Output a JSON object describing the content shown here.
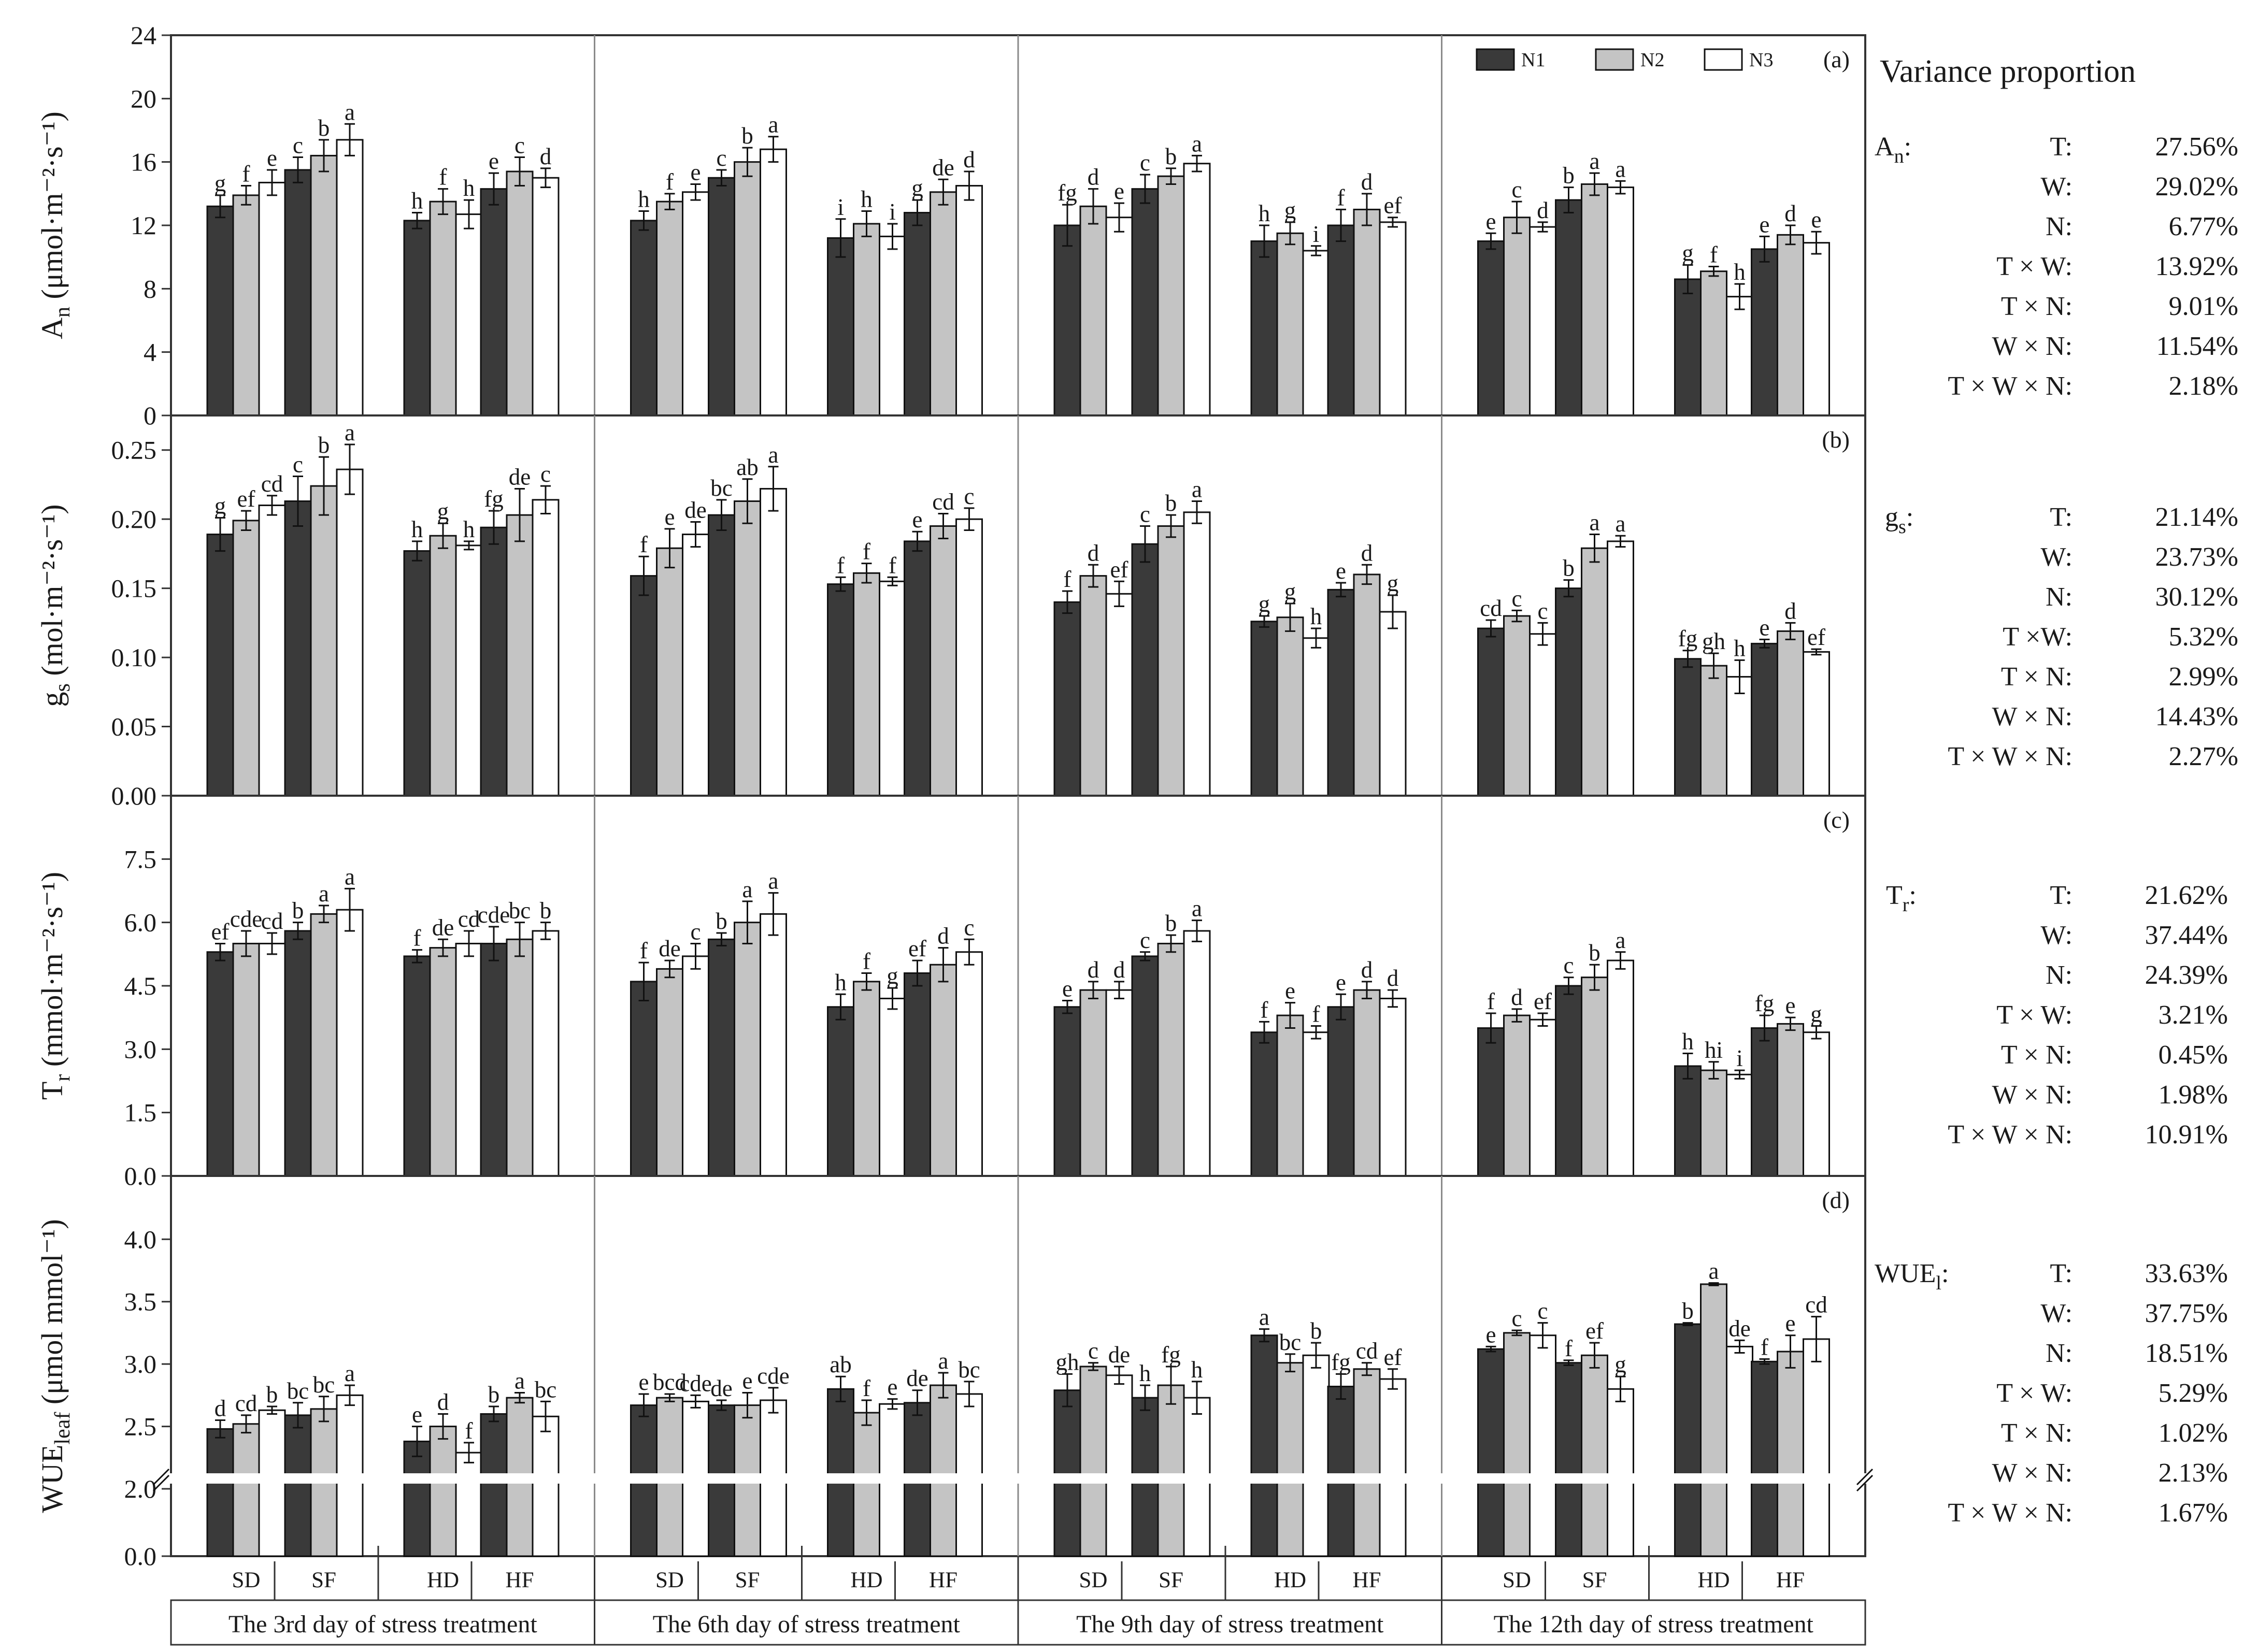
{
  "chart_data": {
    "type": "bar",
    "title": "",
    "series_names": [
      "N1",
      "N2",
      "N3"
    ],
    "colors": {
      "N1": "#3a3a3a",
      "N2": "#c4c4c4",
      "N3": "#ffffff",
      "frame": "#333333",
      "divider": "#8a8a8a"
    },
    "days": [
      "The 3rd day of stress treatment",
      "The 6th day of stress treatment",
      "The 9th day of stress treatment",
      "The 12th day of stress treatment"
    ],
    "treatments": [
      "SD",
      "SF",
      "HD",
      "HF"
    ],
    "panels": [
      {
        "tag": "(a)",
        "ylabel": "An (μmol·m⁻²·s⁻¹)",
        "ylabel_main": "A",
        "ylabel_sub": "n",
        "ylabel_rest": " (μmol·m⁻²·s⁻¹)",
        "ylim": [
          0,
          24
        ],
        "ticks": [
          "0",
          "4",
          "8",
          "12",
          "16",
          "20",
          "24"
        ],
        "tick_values": [
          0,
          4,
          8,
          12,
          16,
          20,
          24
        ],
        "values": [
          [
            13.2,
            13.9,
            14.7,
            15.5,
            16.4,
            17.4,
            12.3,
            13.5,
            12.7,
            14.3,
            15.4,
            15.0
          ],
          [
            12.3,
            13.5,
            14.1,
            15.0,
            16.0,
            16.8,
            11.2,
            12.1,
            11.3,
            12.8,
            14.1,
            14.5
          ],
          [
            12.0,
            13.2,
            12.5,
            14.3,
            15.1,
            15.9,
            11.0,
            11.5,
            10.4,
            12.0,
            13.0,
            12.2
          ],
          [
            11.0,
            12.5,
            11.9,
            13.6,
            14.6,
            14.4,
            8.6,
            9.1,
            7.5,
            10.5,
            11.4,
            10.9
          ]
        ],
        "errors": [
          [
            0.7,
            0.6,
            0.8,
            0.8,
            1.0,
            1.0,
            0.5,
            0.8,
            0.9,
            1.0,
            0.9,
            0.6
          ],
          [
            0.6,
            0.5,
            0.5,
            0.5,
            0.9,
            0.8,
            1.2,
            0.8,
            0.8,
            0.8,
            0.8,
            0.9
          ],
          [
            1.3,
            1.1,
            0.9,
            0.9,
            0.5,
            0.5,
            1.0,
            0.7,
            0.3,
            1.0,
            1.0,
            0.3
          ],
          [
            0.5,
            1.0,
            0.3,
            0.8,
            0.7,
            0.4,
            0.9,
            0.3,
            0.8,
            0.8,
            0.6,
            0.7
          ]
        ],
        "letters": [
          [
            "g",
            "f",
            "e",
            "c",
            "b",
            "a",
            "h",
            "f",
            "h",
            "e",
            "c",
            "d"
          ],
          [
            "h",
            "f",
            "e",
            "c",
            "b",
            "a",
            "i",
            "h",
            "i",
            "g",
            "de",
            "d"
          ],
          [
            "fg",
            "d",
            "e",
            "c",
            "b",
            "a",
            "h",
            "g",
            "i",
            "f",
            "d",
            "ef"
          ],
          [
            "e",
            "c",
            "d",
            "b",
            "a",
            "a",
            "g",
            "f",
            "h",
            "e",
            "d",
            "e"
          ]
        ],
        "variance_label_main": "A",
        "variance_label_sub": "n",
        "variance": [
          {
            "term": "T:",
            "value": "27.56%"
          },
          {
            "term": "W:",
            "value": "29.02%"
          },
          {
            "term": "N:",
            "value": "6.77%"
          },
          {
            "term": "T × W:",
            "value": "13.92%"
          },
          {
            "term": "T × N:",
            "value": "9.01%"
          },
          {
            "term": "W × N:",
            "value": "11.54%"
          },
          {
            "term": "T × W × N:",
            "value": "2.18%"
          }
        ]
      },
      {
        "tag": "(b)",
        "ylabel": "gs (mol·m⁻²·s⁻¹)",
        "ylabel_main": "g",
        "ylabel_sub": "s",
        "ylabel_rest": " (mol·m⁻²·s⁻¹)",
        "ylim": [
          0,
          0.275
        ],
        "ticks": [
          "0.00",
          "0.05",
          "0.10",
          "0.15",
          "0.20",
          "0.25"
        ],
        "tick_values": [
          0,
          0.05,
          0.1,
          0.15,
          0.2,
          0.25
        ],
        "values": [
          [
            0.189,
            0.199,
            0.21,
            0.213,
            0.224,
            0.236,
            0.177,
            0.188,
            0.181,
            0.194,
            0.203,
            0.214
          ],
          [
            0.159,
            0.179,
            0.189,
            0.203,
            0.213,
            0.222,
            0.153,
            0.161,
            0.155,
            0.184,
            0.195,
            0.2
          ],
          [
            0.14,
            0.159,
            0.146,
            0.182,
            0.195,
            0.205,
            0.126,
            0.129,
            0.114,
            0.149,
            0.16,
            0.133
          ],
          [
            0.121,
            0.13,
            0.117,
            0.15,
            0.179,
            0.184,
            0.099,
            0.094,
            0.086,
            0.11,
            0.119,
            0.104
          ]
        ],
        "errors": [
          [
            0.012,
            0.007,
            0.007,
            0.018,
            0.021,
            0.018,
            0.007,
            0.009,
            0.003,
            0.012,
            0.019,
            0.01
          ],
          [
            0.014,
            0.014,
            0.009,
            0.011,
            0.016,
            0.016,
            0.005,
            0.007,
            0.003,
            0.007,
            0.009,
            0.008
          ],
          [
            0.008,
            0.008,
            0.009,
            0.013,
            0.008,
            0.008,
            0.004,
            0.01,
            0.007,
            0.005,
            0.007,
            0.012
          ],
          [
            0.006,
            0.004,
            0.008,
            0.006,
            0.01,
            0.004,
            0.006,
            0.009,
            0.012,
            0.003,
            0.006,
            0.002
          ]
        ],
        "letters": [
          [
            "g",
            "ef",
            "cd",
            "c",
            "b",
            "a",
            "h",
            "g",
            "h",
            "fg",
            "de",
            "c"
          ],
          [
            "f",
            "e",
            "de",
            "bc",
            "ab",
            "a",
            "f",
            "f",
            "f",
            "e",
            "cd",
            "c"
          ],
          [
            "f",
            "d",
            "ef",
            "c",
            "b",
            "a",
            "g",
            "g",
            "h",
            "e",
            "d",
            "g"
          ],
          [
            "cd",
            "c",
            "c",
            "b",
            "a",
            "a",
            "fg",
            "gh",
            "h",
            "e",
            "d",
            "ef"
          ]
        ],
        "variance_label_main": "g",
        "variance_label_sub": "s",
        "variance": [
          {
            "term": "T:",
            "value": "21.14%"
          },
          {
            "term": "W:",
            "value": "23.73%"
          },
          {
            "term": "N:",
            "value": "30.12%"
          },
          {
            "term": "T ×W:",
            "value": "5.32%"
          },
          {
            "term": "T × N:",
            "value": "2.99%"
          },
          {
            "term": "W × N:",
            "value": "14.43%"
          },
          {
            "term": "T × W × N:",
            "value": "2.27%"
          }
        ]
      },
      {
        "tag": "(c)",
        "ylabel": "Tr (mmol·m⁻²·s⁻¹)",
        "ylabel_main": "T",
        "ylabel_sub": "r",
        "ylabel_rest": " (mmol·m⁻²·s⁻¹)",
        "ylim": [
          0,
          9
        ],
        "ticks": [
          "0.0",
          "1.5",
          "3.0",
          "4.5",
          "6.0",
          "7.5"
        ],
        "tick_values": [
          0,
          1.5,
          3.0,
          4.5,
          6.0,
          7.5
        ],
        "values": [
          [
            5.3,
            5.5,
            5.5,
            5.8,
            6.2,
            6.3,
            5.2,
            5.4,
            5.5,
            5.5,
            5.6,
            5.8
          ],
          [
            4.6,
            4.9,
            5.2,
            5.6,
            6.0,
            6.2,
            4.0,
            4.6,
            4.2,
            4.8,
            5.0,
            5.3
          ],
          [
            4.0,
            4.4,
            4.4,
            5.2,
            5.5,
            5.8,
            3.4,
            3.8,
            3.4,
            4.0,
            4.4,
            4.2
          ],
          [
            3.5,
            3.8,
            3.7,
            4.5,
            4.7,
            5.1,
            2.6,
            2.5,
            2.4,
            3.5,
            3.6,
            3.4
          ]
        ],
        "errors": [
          [
            0.2,
            0.3,
            0.25,
            0.2,
            0.2,
            0.5,
            0.15,
            0.2,
            0.3,
            0.4,
            0.4,
            0.2
          ],
          [
            0.45,
            0.2,
            0.3,
            0.15,
            0.5,
            0.5,
            0.3,
            0.2,
            0.25,
            0.3,
            0.4,
            0.3
          ],
          [
            0.15,
            0.2,
            0.2,
            0.1,
            0.2,
            0.25,
            0.25,
            0.3,
            0.15,
            0.3,
            0.2,
            0.2
          ],
          [
            0.35,
            0.15,
            0.15,
            0.2,
            0.3,
            0.2,
            0.3,
            0.2,
            0.1,
            0.3,
            0.15,
            0.15
          ]
        ],
        "letters": [
          [
            "ef",
            "cde",
            "cd",
            "b",
            "a",
            "a",
            "f",
            "de",
            "cd",
            "cde",
            "bc",
            "b"
          ],
          [
            "f",
            "de",
            "c",
            "b",
            "a",
            "a",
            "h",
            "f",
            "g",
            "ef",
            "d",
            "c"
          ],
          [
            "e",
            "d",
            "d",
            "c",
            "b",
            "a",
            "f",
            "e",
            "f",
            "e",
            "d",
            "d"
          ],
          [
            "f",
            "d",
            "ef",
            "c",
            "b",
            "a",
            "h",
            "hi",
            "i",
            "fg",
            "e",
            "g"
          ]
        ],
        "variance_label_main": "T",
        "variance_label_sub": "r",
        "variance": [
          {
            "term": "T:",
            "value": "21.62%"
          },
          {
            "term": "W:",
            "value": "37.44%"
          },
          {
            "term": "N:",
            "value": "24.39%"
          },
          {
            "term": "T × W:",
            "value": "3.21%"
          },
          {
            "term": "T × N:",
            "value": "0.45%"
          },
          {
            "term": "W × N:",
            "value": "1.98%"
          },
          {
            "term": "T × W × N:",
            "value": "10.91%"
          }
        ]
      },
      {
        "tag": "(d)",
        "ylabel": "WUEleaf (μmol mmol⁻¹)",
        "ylabel_main": "WUE",
        "ylabel_sub": "leaf",
        "ylabel_rest": " (μmol mmol⁻¹)",
        "axis_break": true,
        "ticks": [
          "0.0",
          "2.0",
          "2.5",
          "3.0",
          "3.5",
          "4.0"
        ],
        "tick_values": [
          0,
          2.0,
          2.5,
          3.0,
          3.5,
          4.0
        ],
        "values": [
          [
            2.48,
            2.52,
            2.63,
            2.59,
            2.64,
            2.75,
            2.38,
            2.5,
            2.29,
            2.6,
            2.73,
            2.58
          ],
          [
            2.67,
            2.73,
            2.7,
            2.67,
            2.67,
            2.71,
            2.8,
            2.61,
            2.68,
            2.69,
            2.83,
            2.76
          ],
          [
            2.79,
            2.98,
            2.91,
            2.73,
            2.83,
            2.73,
            3.23,
            3.01,
            3.07,
            2.82,
            2.96,
            2.88
          ],
          [
            3.12,
            3.25,
            3.23,
            3.01,
            3.07,
            2.8,
            3.32,
            3.64,
            3.14,
            3.02,
            3.1,
            3.2
          ]
        ],
        "errors": [
          [
            0.07,
            0.07,
            0.03,
            0.1,
            0.1,
            0.08,
            0.12,
            0.1,
            0.08,
            0.06,
            0.04,
            0.12
          ],
          [
            0.09,
            0.03,
            0.05,
            0.04,
            0.1,
            0.1,
            0.1,
            0.1,
            0.04,
            0.1,
            0.1,
            0.1
          ],
          [
            0.13,
            0.03,
            0.07,
            0.1,
            0.15,
            0.13,
            0.05,
            0.07,
            0.1,
            0.1,
            0.05,
            0.08
          ],
          [
            0.02,
            0.02,
            0.1,
            0.02,
            0.1,
            0.1,
            0.01,
            0.01,
            0.05,
            0.02,
            0.13,
            0.18
          ]
        ],
        "letters": [
          [
            "d",
            "cd",
            "b",
            "bc",
            "bc",
            "a",
            "e",
            "d",
            "f",
            "b",
            "a",
            "bc"
          ],
          [
            "e",
            "bcd",
            "cde",
            "de",
            "e",
            "cde",
            "ab",
            "f",
            "e",
            "de",
            "a",
            "bc"
          ],
          [
            "gh",
            "c",
            "de",
            "h",
            "fg",
            "h",
            "a",
            "bc",
            "b",
            "fg",
            "cd",
            "ef"
          ],
          [
            "e",
            "c",
            "c",
            "f",
            "ef",
            "g",
            "b",
            "a",
            "de",
            "f",
            "e",
            "cd"
          ]
        ],
        "variance_label_main": "WUE",
        "variance_label_sub": "l",
        "variance": [
          {
            "term": "T:",
            "value": "33.63%"
          },
          {
            "term": "W:",
            "value": "37.75%"
          },
          {
            "term": "N:",
            "value": "18.51%"
          },
          {
            "term": "T × W:",
            "value": "5.29%"
          },
          {
            "term": "T × N:",
            "value": "1.02%"
          },
          {
            "term": "W × N:",
            "value": "2.13%"
          },
          {
            "term": "T × W × N:",
            "value": "1.67%"
          }
        ]
      }
    ],
    "variance_title": "Variance proportion",
    "legend_position": "top-right"
  }
}
